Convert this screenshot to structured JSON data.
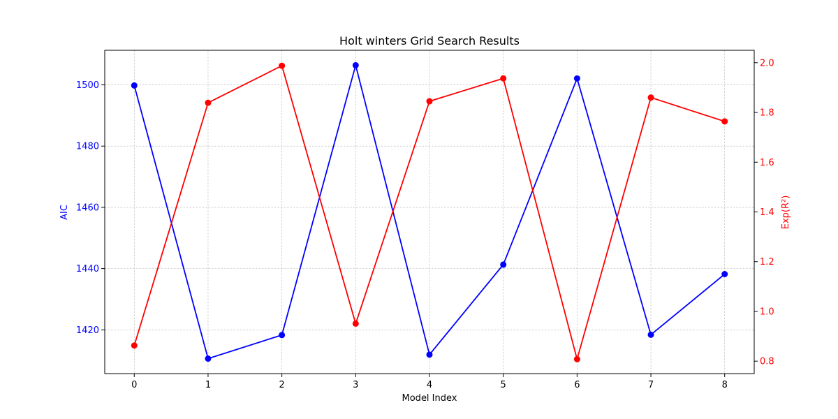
{
  "chart_data": {
    "type": "line",
    "title": "Holt winters Grid Search Results",
    "xlabel": "Model Index",
    "ylabel_left": "AIC",
    "ylabel_right": "Exp(R²)",
    "x": [
      0,
      1,
      2,
      3,
      4,
      5,
      6,
      7,
      8
    ],
    "x_ticks": [
      "0",
      "1",
      "2",
      "3",
      "4",
      "5",
      "6",
      "7",
      "8"
    ],
    "xlim": [
      -0.4,
      8.4
    ],
    "left_axis": {
      "ylim": [
        1405.7,
        1511.3
      ],
      "ticks": [
        1420,
        1440,
        1460,
        1480,
        1500
      ],
      "tick_labels": [
        "1420",
        "1440",
        "1460",
        "1480",
        "1500"
      ],
      "color": "#0000ff"
    },
    "right_axis": {
      "ylim": [
        0.75,
        2.05
      ],
      "ticks": [
        0.8,
        1.0,
        1.2,
        1.4,
        1.6,
        1.8,
        2.0
      ],
      "tick_labels": [
        "0.8",
        "1.0",
        "1.2",
        "1.4",
        "1.6",
        "1.8",
        "2.0"
      ],
      "color": "#ff0000"
    },
    "series": [
      {
        "axis": "left",
        "color": "#0000ff",
        "values": [
          1499.8,
          1410.6,
          1418.3,
          1506.4,
          1411.9,
          1441.3,
          1502.1,
          1418.4,
          1438.2
        ]
      },
      {
        "axis": "right",
        "color": "#ff0000",
        "values": [
          0.863,
          1.839,
          1.988,
          0.951,
          1.845,
          1.937,
          0.808,
          1.86,
          1.764
        ]
      }
    ],
    "grid": true
  }
}
